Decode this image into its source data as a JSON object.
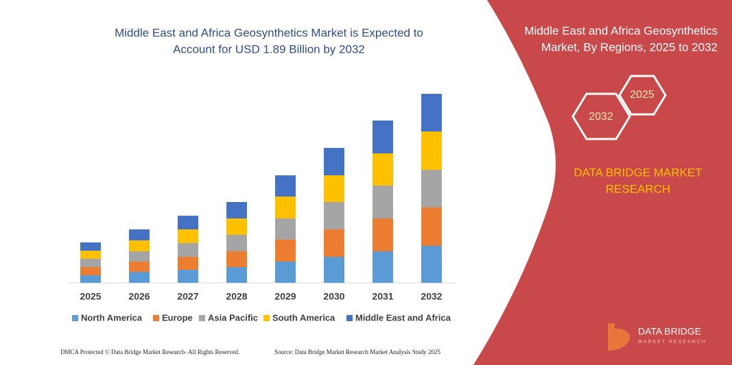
{
  "chart_data": {
    "type": "stacked-bar",
    "title": [
      "Middle East and Africa Geosynthetics Market is Expected to",
      "Account for USD 1.89 Billion by 2032"
    ],
    "categories": [
      "2025",
      "2026",
      "2027",
      "2028",
      "2029",
      "2030",
      "2031",
      "2032"
    ],
    "series": [
      {
        "name": "North America",
        "color": "#5b9bd5",
        "values": [
          11,
          16,
          19,
          23,
          31,
          38,
          46,
          54
        ]
      },
      {
        "name": "Europe",
        "color": "#ed7d31",
        "values": [
          12,
          15,
          19,
          23,
          32,
          40,
          48,
          56
        ]
      },
      {
        "name": "Asia Pacific",
        "color": "#a5a5a5",
        "values": [
          12,
          15,
          20,
          24,
          31,
          40,
          48,
          55
        ]
      },
      {
        "name": "South America",
        "color": "#ffc000",
        "values": [
          12,
          16,
          20,
          24,
          32,
          39,
          47,
          56
        ]
      },
      {
        "name": "Middle East and Africa",
        "color": "#4472c4",
        "values": [
          12,
          16,
          20,
          24,
          31,
          40,
          48,
          55
        ]
      }
    ]
  },
  "panel": {
    "title": [
      "Middle East and Africa Geosynthetics",
      "Market, By Regions, 2025 to 2032"
    ],
    "hexagons": [
      "2032",
      "2025"
    ],
    "brand": [
      "DATA BRIDGE MARKET",
      "RESEARCH"
    ],
    "logo": "DATA BRIDGE",
    "logo_sub": "MARKET RESEARCH"
  },
  "footer": {
    "left": "DMCA Protected © Data Bridge Market Research- All Rights Reserved.",
    "right": "Source: Data Bridge Market Research Market Analysis Study 2025"
  }
}
